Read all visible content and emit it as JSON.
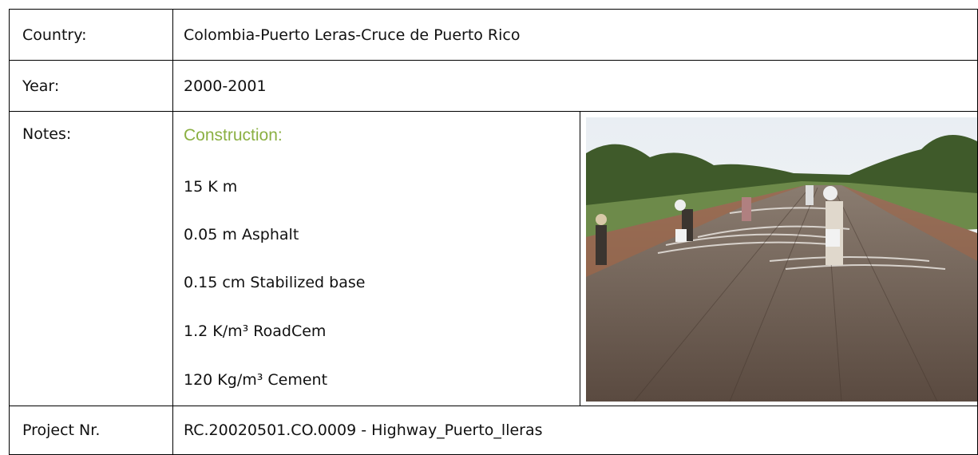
{
  "table": {
    "rows": [
      {
        "label": "Country:",
        "value": "Colombia-Puerto Leras-Cruce de Puerto Rico"
      },
      {
        "label": "Year:",
        "value": "2000-2001"
      },
      {
        "label": "Notes:",
        "heading": "Construction:",
        "lines": [
          "15 K m",
          "0.05 m Asphalt",
          "0.15 cm Stabilized base",
          "1.2 K/m³ RoadCem",
          "120 Kg/m³ Cement"
        ]
      },
      {
        "label": "Project Nr.",
        "value": "RC.20020501.CO.0009 - Highway_Puerto_lleras"
      }
    ]
  }
}
